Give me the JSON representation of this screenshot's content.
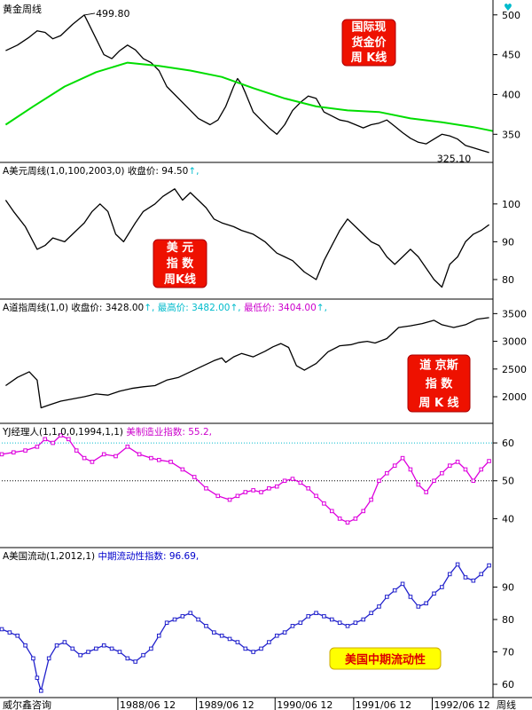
{
  "chart_data": [
    {
      "type": "line",
      "header": "黄金周线",
      "y_ticks": [
        350,
        400,
        450,
        500
      ],
      "ylim": [
        318,
        512
      ],
      "label_box": [
        "国际现",
        "货金价",
        "周  K线"
      ],
      "annotations": [
        {
          "text": "499.80",
          "x": 1988.05,
          "y": 499.8
        },
        {
          "text": "325.10",
          "x": 1993.1,
          "y": 325.1
        }
      ],
      "series": [
        {
          "role": "price",
          "color": "#000000",
          "x": [
            1987.05,
            1987.2,
            1987.35,
            1987.45,
            1987.55,
            1987.65,
            1987.75,
            1987.9,
            1988.0,
            1988.05,
            1988.1,
            1988.2,
            1988.3,
            1988.4,
            1988.5,
            1988.6,
            1988.7,
            1988.8,
            1988.9,
            1989.0,
            1989.1,
            1989.2,
            1989.35,
            1989.5,
            1989.65,
            1989.75,
            1989.85,
            1989.95,
            1990.0,
            1990.05,
            1990.1,
            1990.2,
            1990.3,
            1990.4,
            1990.5,
            1990.6,
            1990.7,
            1990.8,
            1990.9,
            1991.0,
            1991.1,
            1991.2,
            1991.3,
            1991.4,
            1991.5,
            1991.6,
            1991.7,
            1991.8,
            1991.9,
            1992.0,
            1992.1,
            1992.2,
            1992.3,
            1992.4,
            1992.5,
            1992.6,
            1992.7,
            1992.8,
            1992.9,
            1993.0,
            1993.1,
            1993.2
          ],
          "y": [
            455,
            462,
            472,
            480,
            478,
            470,
            474,
            488,
            496,
            499.8,
            490,
            470,
            450,
            445,
            455,
            462,
            456,
            445,
            440,
            430,
            410,
            400,
            385,
            370,
            362,
            368,
            385,
            410,
            420,
            413,
            402,
            378,
            368,
            358,
            350,
            362,
            380,
            390,
            398,
            395,
            378,
            373,
            368,
            366,
            362,
            358,
            362,
            364,
            368,
            360,
            352,
            345,
            340,
            338,
            344,
            350,
            348,
            344,
            336,
            333,
            330,
            327
          ]
        },
        {
          "role": "moving-average",
          "color": "#00dd00",
          "x": [
            1987.05,
            1987.4,
            1987.8,
            1988.2,
            1988.6,
            1989.0,
            1989.4,
            1989.8,
            1990.2,
            1990.6,
            1991.0,
            1991.4,
            1991.8,
            1992.2,
            1992.6,
            1993.0,
            1993.25
          ],
          "y": [
            362,
            385,
            410,
            428,
            440,
            436,
            430,
            422,
            408,
            395,
            385,
            380,
            378,
            370,
            365,
            359,
            354
          ]
        }
      ]
    },
    {
      "type": "line",
      "header_parts": [
        {
          "text": "A美元周线(1,0,100,2003,0) 收盘价: 94.50",
          "color": "#000000"
        },
        {
          "text": "↑,",
          "color": "#00bbcc"
        }
      ],
      "y_ticks": [
        80,
        90,
        100
      ],
      "ylim": [
        76,
        107
      ],
      "label_box": [
        "美    元",
        "指    数",
        "周K线"
      ],
      "series": [
        {
          "role": "price",
          "color": "#000000",
          "x": [
            1987.05,
            1987.15,
            1987.3,
            1987.45,
            1987.55,
            1987.65,
            1987.8,
            1987.9,
            1988.05,
            1988.15,
            1988.25,
            1988.35,
            1988.45,
            1988.55,
            1988.7,
            1988.8,
            1988.95,
            1989.05,
            1989.2,
            1989.3,
            1989.4,
            1989.5,
            1989.6,
            1989.7,
            1989.8,
            1989.95,
            1990.05,
            1990.2,
            1990.35,
            1990.5,
            1990.6,
            1990.7,
            1990.85,
            1991.0,
            1991.1,
            1991.2,
            1991.3,
            1991.4,
            1991.5,
            1991.6,
            1991.7,
            1991.8,
            1991.9,
            1992.0,
            1992.1,
            1992.2,
            1992.3,
            1992.4,
            1992.5,
            1992.6,
            1992.7,
            1992.8,
            1992.9,
            1993.0,
            1993.1,
            1993.2
          ],
          "y": [
            101,
            98,
            94,
            88,
            89,
            91,
            90,
            92,
            95,
            98,
            100,
            98,
            92,
            90,
            95,
            98,
            100,
            102,
            104,
            101,
            103,
            101,
            99,
            96,
            95,
            94,
            93,
            92,
            90,
            87,
            86,
            85,
            82,
            80,
            85,
            89,
            93,
            96,
            94,
            92,
            90,
            89,
            86,
            84,
            86,
            88,
            86,
            83,
            80,
            78,
            84,
            86,
            90,
            92,
            93,
            94.5
          ]
        }
      ]
    },
    {
      "type": "line",
      "header_parts": [
        {
          "text": "A道指周线(1,0) 收盘价: 3428.00",
          "color": "#000000"
        },
        {
          "text": "↑, 最高价: 3482.00",
          "color": "#00bbcc"
        },
        {
          "text": "↑, ",
          "color": "#00bbcc"
        },
        {
          "text": "最低价: 3404.00",
          "color": "#cc00cc"
        },
        {
          "text": "↑,",
          "color": "#00bbcc"
        }
      ],
      "y_ticks": [
        2000,
        2500,
        3000,
        3500
      ],
      "ylim": [
        1600,
        3650
      ],
      "label_box": [
        "道 京斯",
        "指     数",
        "周  K 线"
      ],
      "series": [
        {
          "role": "price",
          "color": "#000000",
          "x": [
            1987.05,
            1987.2,
            1987.35,
            1987.45,
            1987.5,
            1987.6,
            1987.75,
            1987.9,
            1988.05,
            1988.2,
            1988.35,
            1988.5,
            1988.65,
            1988.8,
            1988.95,
            1989.1,
            1989.25,
            1989.4,
            1989.55,
            1989.7,
            1989.8,
            1989.85,
            1989.95,
            1990.05,
            1990.2,
            1990.35,
            1990.45,
            1990.55,
            1990.65,
            1990.75,
            1990.85,
            1991.0,
            1991.15,
            1991.3,
            1991.45,
            1991.55,
            1991.65,
            1991.75,
            1991.9,
            1992.05,
            1992.2,
            1992.35,
            1992.5,
            1992.6,
            1992.75,
            1992.9,
            1993.05,
            1993.2
          ],
          "y": [
            2200,
            2350,
            2450,
            2300,
            1800,
            1850,
            1920,
            1960,
            2000,
            2050,
            2030,
            2100,
            2150,
            2180,
            2200,
            2300,
            2350,
            2450,
            2550,
            2650,
            2700,
            2620,
            2720,
            2780,
            2720,
            2820,
            2900,
            2960,
            2890,
            2560,
            2480,
            2600,
            2810,
            2920,
            2940,
            2980,
            3000,
            2970,
            3050,
            3250,
            3280,
            3320,
            3380,
            3300,
            3250,
            3300,
            3400,
            3428
          ]
        }
      ]
    },
    {
      "type": "line",
      "header_parts": [
        {
          "text": "YJ经理人(1,1,0,0,1994,1,1) ",
          "color": "#000000"
        },
        {
          "text": "美制造业指数: 55.2,",
          "color": "#cc00cc"
        }
      ],
      "y_ticks": [
        40,
        50,
        60
      ],
      "ylim": [
        34,
        64
      ],
      "ref_lines": [
        {
          "y": 60,
          "color": "#00bbcc"
        },
        {
          "y": 50,
          "color": "#000000"
        }
      ],
      "series": [
        {
          "role": "index",
          "color": "#dd00dd",
          "x": [
            1987.0,
            1987.15,
            1987.3,
            1987.45,
            1987.55,
            1987.65,
            1987.75,
            1987.85,
            1987.95,
            1988.05,
            1988.15,
            1988.3,
            1988.45,
            1988.6,
            1988.75,
            1988.9,
            1989.0,
            1989.15,
            1989.3,
            1989.45,
            1989.6,
            1989.75,
            1989.9,
            1990.0,
            1990.1,
            1990.2,
            1990.3,
            1990.4,
            1990.5,
            1990.6,
            1990.7,
            1990.8,
            1990.9,
            1991.0,
            1991.1,
            1991.2,
            1991.3,
            1991.4,
            1991.5,
            1991.6,
            1991.7,
            1991.8,
            1991.9,
            1992.0,
            1992.1,
            1992.2,
            1992.3,
            1992.4,
            1992.5,
            1992.6,
            1992.7,
            1992.8,
            1992.9,
            1993.0,
            1993.1,
            1993.2
          ],
          "y": [
            57,
            57.5,
            58,
            59,
            61,
            60,
            62,
            61,
            58,
            56,
            55,
            57,
            56.5,
            59,
            57,
            56,
            55.5,
            55,
            53,
            51,
            48,
            46,
            45,
            46,
            47,
            47.5,
            47,
            48,
            48.5,
            50,
            50.5,
            49.5,
            48,
            46,
            44,
            42,
            40,
            39,
            40,
            42,
            45,
            50,
            52,
            54,
            56,
            53,
            49,
            47,
            50,
            52,
            54,
            55,
            53,
            50,
            53,
            55.2
          ]
        }
      ]
    },
    {
      "type": "line",
      "header_parts": [
        {
          "text": "A美国流动(1,2012,1) ",
          "color": "#000000"
        },
        {
          "text": "中期流动性指数: 96.69,",
          "color": "#0000cc"
        }
      ],
      "y_ticks": [
        60,
        70,
        80,
        90
      ],
      "ylim": [
        57,
        100
      ],
      "label_box": [
        "美国中期流动性"
      ],
      "series": [
        {
          "role": "index",
          "color": "#2222cc",
          "x": [
            1987.0,
            1987.1,
            1987.2,
            1987.3,
            1987.4,
            1987.45,
            1987.5,
            1987.6,
            1987.7,
            1987.8,
            1987.9,
            1988.0,
            1988.1,
            1988.2,
            1988.3,
            1988.4,
            1988.5,
            1988.6,
            1988.7,
            1988.8,
            1988.9,
            1989.0,
            1989.1,
            1989.2,
            1989.3,
            1989.4,
            1989.5,
            1989.6,
            1989.7,
            1989.8,
            1989.9,
            1990.0,
            1990.1,
            1990.2,
            1990.3,
            1990.4,
            1990.5,
            1990.6,
            1990.7,
            1990.8,
            1990.9,
            1991.0,
            1991.1,
            1991.2,
            1991.3,
            1991.4,
            1991.5,
            1991.6,
            1991.7,
            1991.8,
            1991.9,
            1992.0,
            1992.1,
            1992.2,
            1992.3,
            1992.4,
            1992.5,
            1992.6,
            1992.7,
            1992.8,
            1992.9,
            1993.0,
            1993.1,
            1993.2
          ],
          "y": [
            77,
            76,
            75,
            72,
            68,
            62,
            58,
            68,
            72,
            73,
            71,
            69,
            70,
            71,
            72,
            71,
            70,
            68,
            67,
            69,
            71,
            75,
            79,
            80,
            81,
            82,
            80,
            78,
            76,
            75,
            74,
            73,
            71,
            70,
            71,
            73,
            75,
            76,
            78,
            79,
            81,
            82,
            81,
            80,
            79,
            78,
            79,
            80,
            82,
            84,
            87,
            89,
            91,
            87,
            84,
            85,
            88,
            90,
            94,
            97,
            93,
            92,
            94,
            96.69
          ]
        }
      ]
    }
  ],
  "x_axis": {
    "range": [
      1987.0,
      1993.25
    ],
    "ticks": [
      {
        "x": 1987.45,
        "label": "威尔鑫咨询"
      },
      {
        "x": 1988.5,
        "label": "1988/06 12"
      },
      {
        "x": 1989.5,
        "label": "1989/06 12"
      },
      {
        "x": 1990.5,
        "label": "1990/06 12"
      },
      {
        "x": 1991.5,
        "label": "1991/06 12"
      },
      {
        "x": 1992.5,
        "label": "1992/06 12"
      }
    ],
    "period_label": "周线"
  },
  "colors": {
    "panel_border": "#000000",
    "label_box_fill": "#ee1100",
    "label_box_text": "#ffffff",
    "label_box_alt_fill": "#ffff00",
    "label_box_alt_text": "#dd0000",
    "icon_accent": "#00bbcc"
  }
}
